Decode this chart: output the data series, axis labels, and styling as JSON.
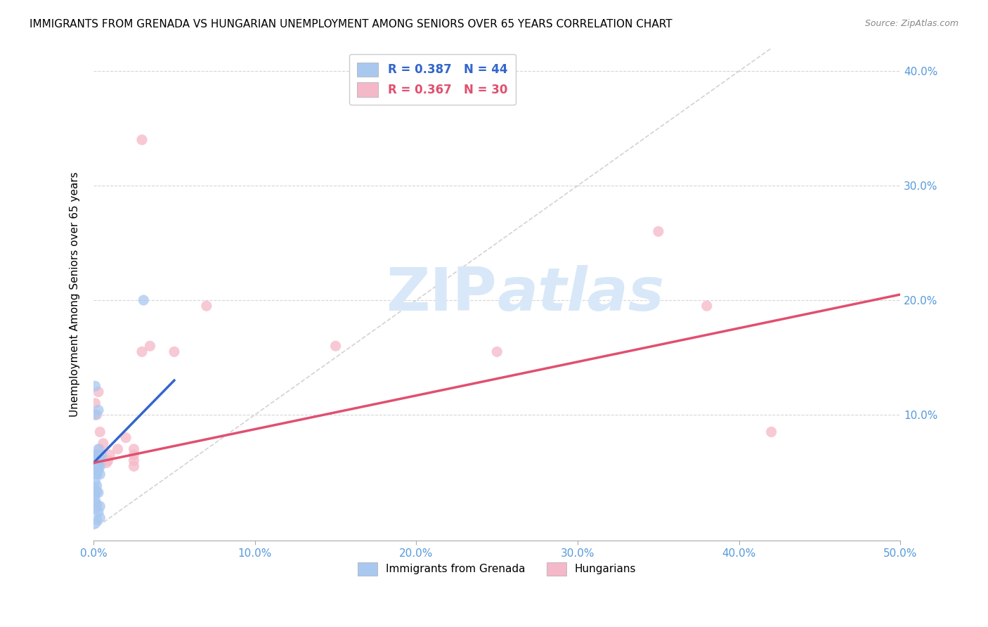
{
  "title": "IMMIGRANTS FROM GRENADA VS HUNGARIAN UNEMPLOYMENT AMONG SENIORS OVER 65 YEARS CORRELATION CHART",
  "source": "Source: ZipAtlas.com",
  "ylabel": "Unemployment Among Seniors over 65 years",
  "xlim": [
    0,
    0.5
  ],
  "ylim": [
    -0.01,
    0.42
  ],
  "xticks": [
    0.0,
    0.1,
    0.2,
    0.3,
    0.4,
    0.5
  ],
  "xticklabels": [
    "0.0%",
    "10.0%",
    "20.0%",
    "30.0%",
    "40.0%",
    "50.0%"
  ],
  "yticks": [
    0.1,
    0.2,
    0.3,
    0.4
  ],
  "yticklabels": [
    "10.0%",
    "20.0%",
    "30.0%",
    "40.0%"
  ],
  "legend_blue_label": "R = 0.387   N = 44",
  "legend_pink_label": "R = 0.367   N = 30",
  "legend_bottom_blue": "Immigrants from Grenada",
  "legend_bottom_pink": "Hungarians",
  "blue_scatter_x": [
    0.001,
    0.002,
    0.003,
    0.001,
    0.002,
    0.001,
    0.002,
    0.003,
    0.004,
    0.001,
    0.002,
    0.003,
    0.001,
    0.001,
    0.002,
    0.003,
    0.005,
    0.004,
    0.002,
    0.001,
    0.001,
    0.002,
    0.003,
    0.004,
    0.001,
    0.002,
    0.001,
    0.002,
    0.001,
    0.003,
    0.001,
    0.002,
    0.004,
    0.001,
    0.003,
    0.004,
    0.002,
    0.001,
    0.001,
    0.003,
    0.001,
    0.031,
    0.002,
    0.002
  ],
  "blue_scatter_y": [
    0.065,
    0.055,
    0.07,
    0.06,
    0.065,
    0.055,
    0.058,
    0.06,
    0.062,
    0.058,
    0.052,
    0.055,
    0.057,
    0.06,
    0.053,
    0.058,
    0.065,
    0.055,
    0.048,
    0.06,
    0.058,
    0.055,
    0.052,
    0.048,
    0.042,
    0.038,
    0.035,
    0.033,
    0.03,
    0.032,
    0.025,
    0.022,
    0.02,
    0.018,
    0.015,
    0.01,
    0.008,
    0.005,
    0.1,
    0.104,
    0.125,
    0.2,
    0.055,
    0.048
  ],
  "pink_scatter_x": [
    0.001,
    0.002,
    0.001,
    0.003,
    0.004,
    0.003,
    0.005,
    0.003,
    0.004,
    0.006,
    0.008,
    0.01,
    0.009,
    0.015,
    0.02,
    0.025,
    0.025,
    0.025,
    0.025,
    0.03,
    0.035,
    0.05,
    0.07,
    0.15,
    0.25,
    0.35,
    0.38,
    0.42,
    0.03,
    0.002
  ],
  "pink_scatter_y": [
    0.065,
    0.1,
    0.11,
    0.12,
    0.085,
    0.055,
    0.06,
    0.065,
    0.07,
    0.075,
    0.058,
    0.065,
    0.06,
    0.07,
    0.08,
    0.06,
    0.065,
    0.055,
    0.07,
    0.155,
    0.16,
    0.155,
    0.195,
    0.16,
    0.155,
    0.26,
    0.195,
    0.085,
    0.34,
    0.02
  ],
  "blue_trend_x": [
    0.0,
    0.05
  ],
  "blue_trend_y": [
    0.058,
    0.13
  ],
  "pink_trend_x": [
    0.0,
    0.5
  ],
  "pink_trend_y": [
    0.058,
    0.205
  ],
  "blue_color": "#A8C8F0",
  "pink_color": "#F5B8C8",
  "blue_line_color": "#3366CC",
  "pink_line_color": "#E05070",
  "diag_line_color": "#C0C0C0",
  "watermark_zip": "ZIP",
  "watermark_atlas": "atlas",
  "watermark_color": "#D8E8F8",
  "background_color": "#FFFFFF",
  "title_fontsize": 11,
  "axis_label_fontsize": 11,
  "tick_fontsize": 11,
  "tick_color": "#5599DD"
}
